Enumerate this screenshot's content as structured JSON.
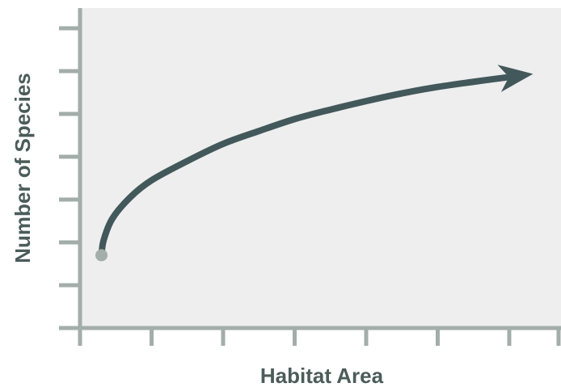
{
  "colors": {
    "plot_background": "#eeeeee",
    "axis": "#a3adaa",
    "curve": "#43585a",
    "start_point": "#a3adaa",
    "label": "#4b5c5a"
  },
  "chart_data": {
    "type": "line",
    "title": "",
    "xlabel": "Habitat Area",
    "ylabel": "Number of Species",
    "xlim": [
      0,
      7
    ],
    "ylim": [
      0,
      7.5
    ],
    "x_ticks": [
      0,
      1,
      2,
      3,
      4,
      5,
      6,
      7
    ],
    "y_ticks": [
      1,
      2,
      3,
      4,
      5,
      6,
      7
    ],
    "tick_labels_shown": false,
    "grid": false,
    "legend": "none",
    "series": [
      {
        "x": [
          0.3,
          0.33,
          0.45,
          0.7,
          1.0,
          1.5,
          2.0,
          2.5,
          3.0,
          3.5,
          4.0,
          4.5,
          5.0,
          5.5,
          5.95
        ],
        "y": [
          1.7,
          2.05,
          2.55,
          3.05,
          3.45,
          3.9,
          4.3,
          4.6,
          4.88,
          5.1,
          5.3,
          5.48,
          5.63,
          5.75,
          5.85
        ]
      }
    ],
    "start_marker": true,
    "end_arrow": true
  }
}
